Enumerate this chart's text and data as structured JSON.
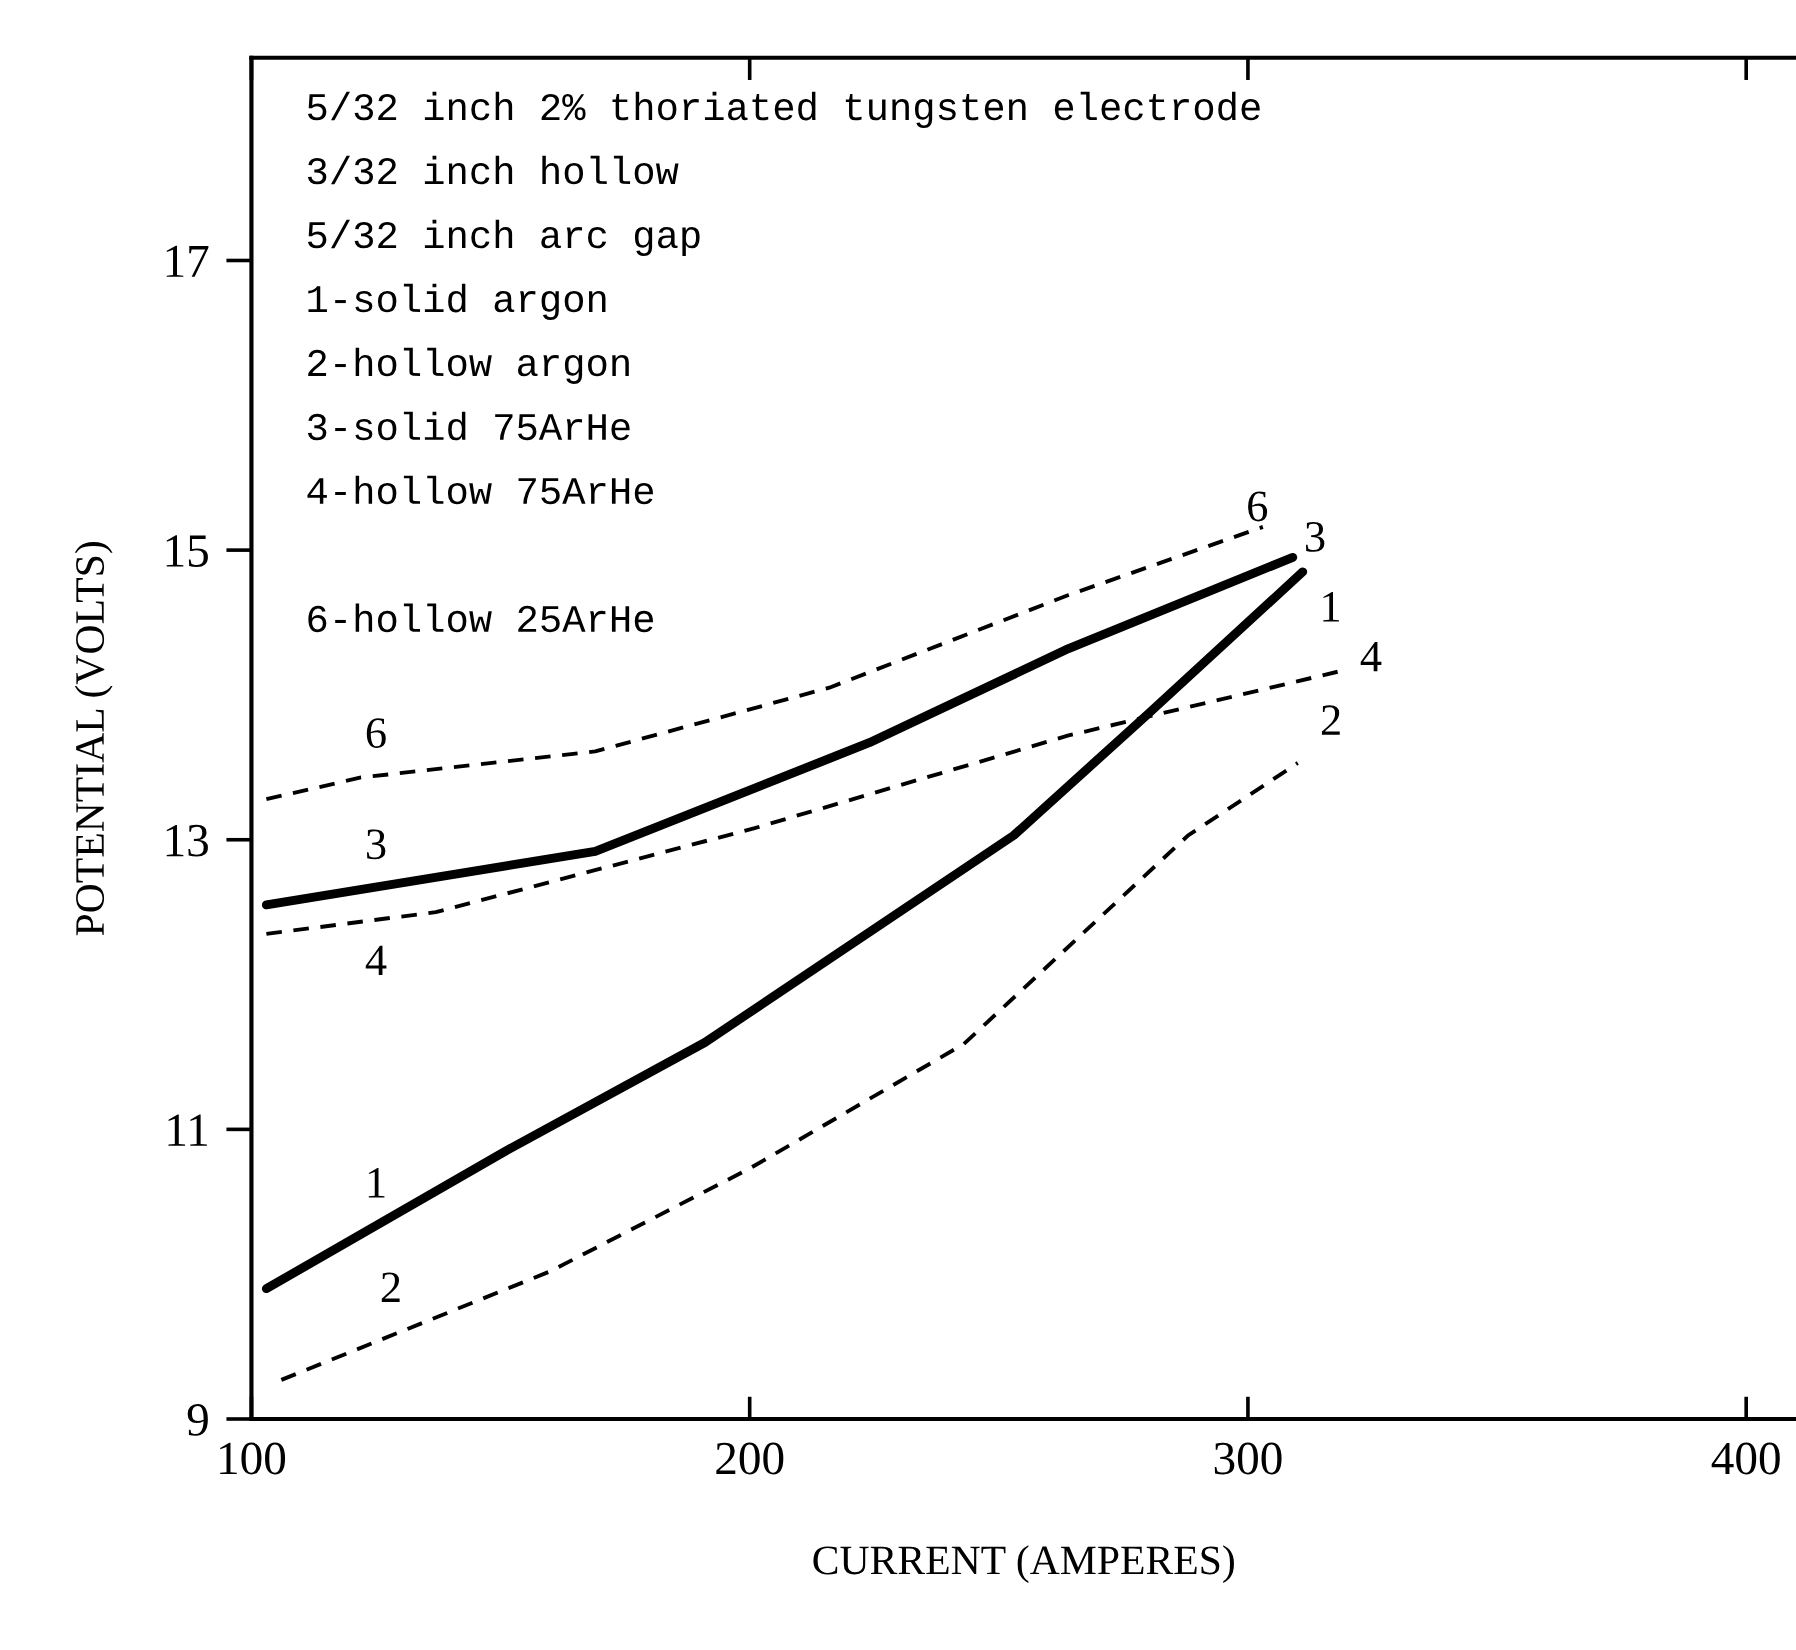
{
  "chart_data": {
    "type": "line",
    "xlabel": "CURRENT (AMPERES)",
    "ylabel": "POTENTIAL (VOLTS)",
    "xlim": [
      100,
      410
    ],
    "ylim": [
      9,
      18.4
    ],
    "xticks": [
      100,
      200,
      300,
      400
    ],
    "yticks": [
      9,
      11,
      13,
      15,
      17
    ],
    "grid": false,
    "marker": "none",
    "series": [
      {
        "name": "1",
        "color": "#000000",
        "line_style": "solid",
        "x": [
          103,
          151,
          191,
          253,
          280,
          311
        ],
        "values": [
          9.9,
          10.85,
          11.6,
          13.03,
          13.87,
          14.85
        ]
      },
      {
        "name": "2",
        "color": "#000000",
        "line_style": "dashed",
        "x": [
          106,
          160,
          200,
          243,
          288,
          310
        ],
        "values": [
          9.27,
          10.02,
          10.73,
          11.59,
          13.03,
          13.53
        ]
      },
      {
        "name": "3",
        "color": "#000000",
        "line_style": "solid",
        "x": [
          103,
          169,
          224,
          264,
          309
        ],
        "values": [
          12.55,
          12.92,
          13.67,
          14.32,
          14.95
        ]
      },
      {
        "name": "4",
        "color": "#000000",
        "line_style": "dashed",
        "x": [
          103,
          137,
          201,
          264,
          318
        ],
        "values": [
          12.35,
          12.5,
          13.08,
          13.72,
          14.16
        ]
      },
      {
        "name": "6",
        "color": "#000000",
        "line_style": "dashed",
        "x": [
          103,
          122,
          169,
          216,
          264,
          303
        ],
        "values": [
          13.28,
          13.43,
          13.61,
          14.05,
          14.69,
          15.16
        ]
      }
    ],
    "annotations": [
      "5/32 inch 2% thoriated tungsten electrode",
      "3/32 inch hollow",
      "5/32 inch arc gap",
      "1-solid argon",
      "2-hollow argon",
      "3-solid 75ArHe",
      "4-hollow 75ArHe",
      "6-hollow 25ArHe"
    ]
  }
}
